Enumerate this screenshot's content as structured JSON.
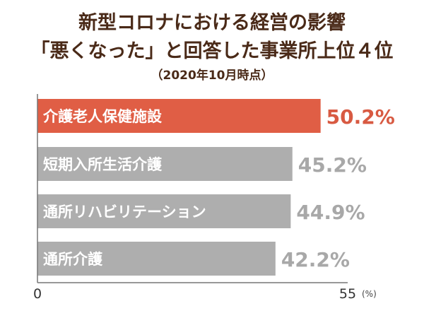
{
  "chart_data": {
    "type": "bar",
    "orientation": "horizontal",
    "title_lines": [
      "新型コロナにおける経営の影響",
      "「悪くなった」と回答した事業所上位４位"
    ],
    "subtitle": "（2020年10月時点）",
    "categories": [
      "介護老人保健施設",
      "短期入所生活介護",
      "通所リハビリテーション",
      "通所介護"
    ],
    "values": [
      50.2,
      45.2,
      44.9,
      42.2
    ],
    "data_labels": [
      "50.2%",
      "45.2%",
      "44.9%",
      "42.2%"
    ],
    "xlim": [
      0,
      55
    ],
    "x_ticks": [
      "0",
      "55"
    ],
    "x_unit": "(%)",
    "grid": false,
    "colors": {
      "highlight": "#e05e45",
      "bar": "#aeaeae",
      "highlight_label": "#d85a42",
      "label": "#a8a8a8",
      "title": "#4a2a18"
    }
  }
}
